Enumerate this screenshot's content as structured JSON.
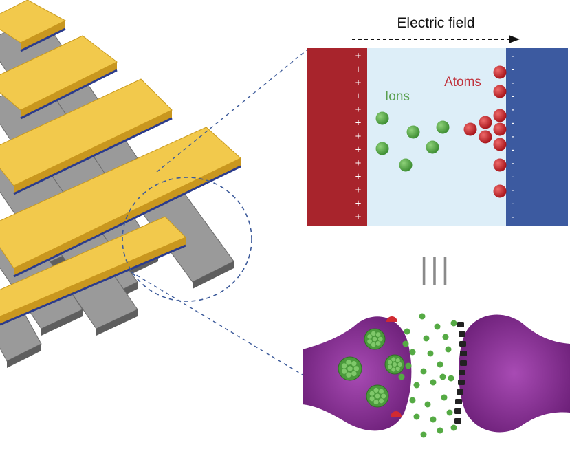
{
  "labels": {
    "electric_field": "Electric field",
    "ions": "Ions",
    "atoms": "Atoms",
    "equivalence": "|||"
  },
  "electrodes": {
    "positive_sign": "+",
    "negative_sign": "-",
    "positive_count": 13,
    "negative_count": 13
  },
  "colors": {
    "top_electrode": "#f2c94c",
    "bottom_electrode": "#9a9a9a",
    "interface_line": "#2b3b8c",
    "anode": "#a8242c",
    "cathode": "#3c5aa0",
    "electrolyte": "#ddeef8",
    "ion": "#55aa44",
    "atom": "#c8282e",
    "ions_text": "#5aa050",
    "atoms_text": "#c0323c",
    "neuron": "#8a2a96",
    "receptor": "#222222",
    "dashed": "#3c5a9a"
  }
}
